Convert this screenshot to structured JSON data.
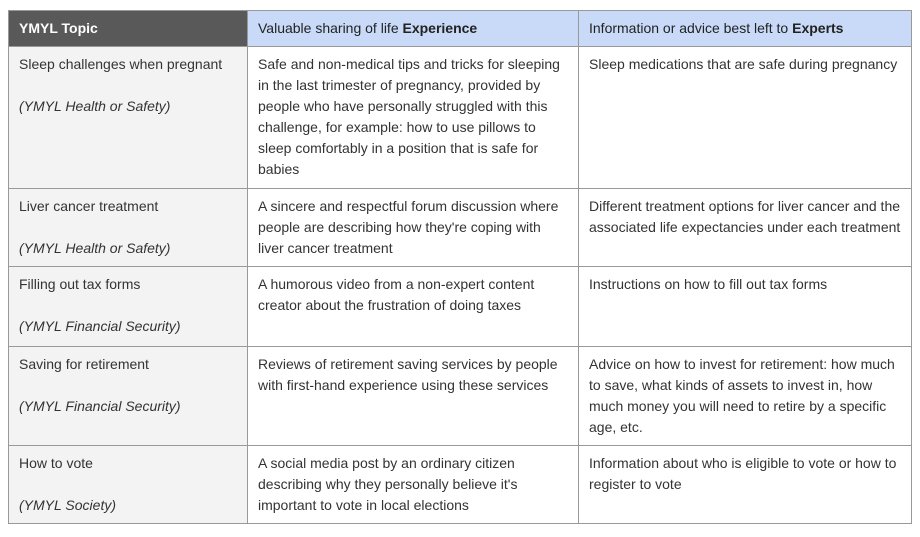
{
  "colors": {
    "header_dark_bg": "#595959",
    "header_blue_bg": "#c9daf8",
    "topic_column_bg": "#f3f3f3",
    "border": "#999999",
    "body_text": "#333333"
  },
  "header": {
    "topic": "YMYL Topic",
    "experience_prefix": "Valuable sharing of life ",
    "experience_bold": "Experience",
    "experts_prefix": "Information or advice best left to ",
    "experts_bold": "Experts"
  },
  "rows": [
    {
      "topic": "Sleep challenges when pregnant",
      "category": "(YMYL Health or Safety)",
      "experience": "Safe and non-medical tips and tricks for sleeping in the last trimester of pregnancy, provided by people who have personally struggled with this challenge, for example: how to use pillows to sleep comfortably in a position that is safe for babies",
      "experts": "Sleep medications that are safe during pregnancy"
    },
    {
      "topic": "Liver cancer treatment",
      "category": "(YMYL Health or Safety)",
      "experience": "A sincere and respectful forum discussion where people are describing how they're coping with liver cancer treatment",
      "experts": "Different treatment options for liver cancer and the associated life expectancies under each treatment"
    },
    {
      "topic": "Filling out tax forms",
      "category": "(YMYL Financial Security)",
      "experience": "A humorous video from a non-expert content creator about the frustration of doing taxes",
      "experts": "Instructions on how to fill out tax forms"
    },
    {
      "topic": "Saving for retirement",
      "category": "(YMYL Financial Security)",
      "experience": "Reviews of retirement saving services by people with first-hand experience using these services",
      "experts": "Advice on how to invest for retirement: how much to save, what kinds of assets to invest in, how much money you will need to retire by a specific age, etc.",
      "experts_note": ""
    },
    {
      "topic": "How to vote",
      "category": "(YMYL Society)",
      "experience": "A social media post by an ordinary citizen describing why they personally believe it's important to vote in local elections",
      "experts": "Information about who is eligible to vote or how to register to vote"
    }
  ]
}
